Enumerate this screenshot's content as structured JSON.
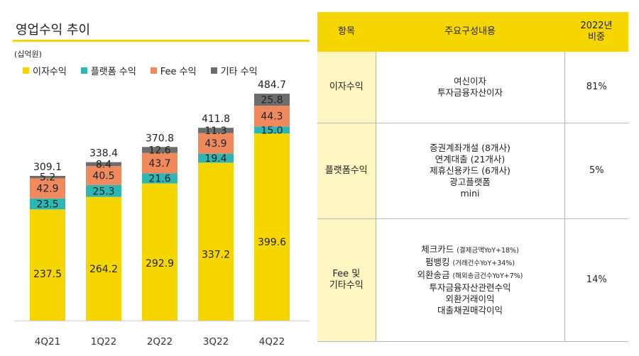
{
  "title": "영업수익 추이",
  "unit": "(십억원)",
  "colors": {
    "interest": "#f5d600",
    "platform": "#2fb5b2",
    "fee": "#ef8a5f",
    "other": "#6d6d6d",
    "accent": "#f5d600",
    "category_bg": "#fdf6c3"
  },
  "legend": [
    {
      "label": "이자수익",
      "color": "#f5d600"
    },
    {
      "label": "플랫폼 수익",
      "color": "#2fb5b2"
    },
    {
      "label": "Fee 수익",
      "color": "#ef8a5f"
    },
    {
      "label": "기타 수익",
      "color": "#6d6d6d"
    }
  ],
  "chart_data": {
    "type": "bar",
    "stacked": true,
    "categories": [
      "4Q21",
      "1Q22",
      "2Q22",
      "3Q22",
      "4Q22"
    ],
    "series": [
      {
        "name": "이자수익",
        "color": "#f5d600",
        "values": [
          237.5,
          264.2,
          292.9,
          337.2,
          399.6
        ]
      },
      {
        "name": "플랫폼 수익",
        "color": "#2fb5b2",
        "values": [
          23.5,
          25.3,
          21.6,
          19.4,
          15.0
        ]
      },
      {
        "name": "Fee 수익",
        "color": "#ef8a5f",
        "values": [
          42.9,
          40.5,
          43.7,
          43.9,
          44.3
        ]
      },
      {
        "name": "기타 수익",
        "color": "#6d6d6d",
        "values": [
          5.2,
          8.4,
          12.6,
          11.3,
          25.8
        ]
      }
    ],
    "totals": [
      "309.1",
      "338.4",
      "370.8",
      "411.8",
      "484.7"
    ],
    "labels": [
      [
        "237.5",
        "23.5",
        "42.9",
        "5.2"
      ],
      [
        "264.2",
        "25.3",
        "40.5",
        "8.4"
      ],
      [
        "292.9",
        "21.6",
        "43.7",
        "12.6"
      ],
      [
        "337.2",
        "19.4",
        "43.9",
        "11.3"
      ],
      [
        "399.6",
        "15.0",
        "44.3",
        "25.8"
      ]
    ],
    "xlabel": "",
    "ylabel": "",
    "ylim": [
      0,
      500
    ],
    "legend_position": "top",
    "grid": false
  },
  "table": {
    "headers": {
      "category": "항목",
      "content": "주요구성내용",
      "share_line1": "2022년",
      "share_line2": "비중"
    },
    "rows": [
      {
        "category_lines": [
          "이자수익"
        ],
        "items": [
          {
            "text": "여신이자",
            "note": ""
          },
          {
            "text": "투자금융자산이자",
            "note": ""
          }
        ],
        "share": "81%"
      },
      {
        "category_lines": [
          "플랫폼수익"
        ],
        "items": [
          {
            "text": "증권계좌개설 (8개사)",
            "note": ""
          },
          {
            "text": "연계대출 (21개사)",
            "note": ""
          },
          {
            "text": "제휴신용카드 (6개사)",
            "note": ""
          },
          {
            "text": "광고플랫폼",
            "note": ""
          },
          {
            "text": "mini",
            "note": ""
          }
        ],
        "share": "5%"
      },
      {
        "category_lines": [
          "Fee 및",
          "기타수익"
        ],
        "items": [
          {
            "text": "체크카드",
            "note": "(결제금액YoY+18%)"
          },
          {
            "text": "펌뱅킹",
            "note": "(거래건수YoY+34%)"
          },
          {
            "text": "외환송금",
            "note": "(해외송금건수YoY+7%)"
          },
          {
            "text": "투자금융자산관련수익",
            "note": ""
          },
          {
            "text": "외환거래이익",
            "note": ""
          },
          {
            "text": "대출채권매각이익",
            "note": ""
          }
        ],
        "share": "14%"
      }
    ]
  }
}
